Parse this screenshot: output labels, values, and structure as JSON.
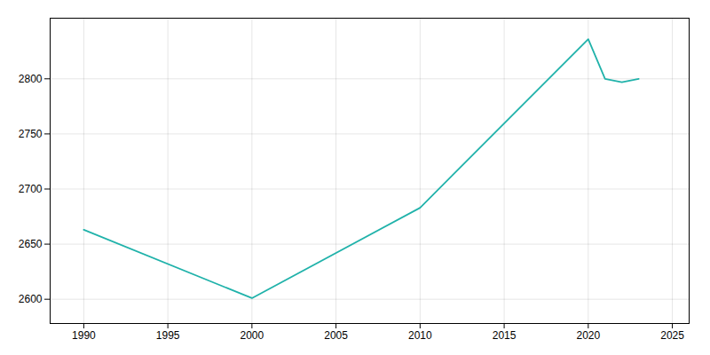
{
  "chart_data": {
    "type": "line",
    "x": [
      1990,
      2000,
      2010,
      2020,
      2021,
      2022,
      2023
    ],
    "values": [
      2663,
      2601,
      2683,
      2836,
      2800,
      2797,
      2800
    ],
    "color": "#20B2AA",
    "xlim": [
      1988,
      2026
    ],
    "ylim": [
      2578,
      2855
    ],
    "xticks": [
      1990,
      1995,
      2000,
      2005,
      2010,
      2015,
      2020,
      2025
    ],
    "yticks": [
      2600,
      2650,
      2700,
      2750,
      2800
    ],
    "grid": true
  }
}
